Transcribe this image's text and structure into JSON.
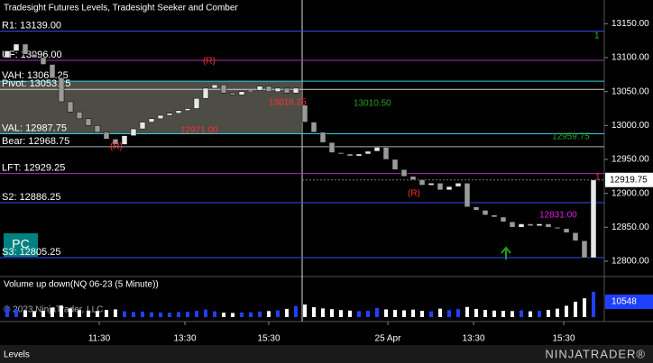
{
  "header": {
    "title": "Tradesight Futures Levels, Tradesight Seeker and Comber"
  },
  "chart_data": {
    "type": "candlestick",
    "ylim": [
      12780,
      13185
    ],
    "yticks": [
      {
        "value": 13150,
        "label": "13150.00"
      },
      {
        "value": 13100,
        "label": "13100.00"
      },
      {
        "value": 13050,
        "label": "13050.00"
      },
      {
        "value": 13000,
        "label": "13000.00"
      },
      {
        "value": 12950,
        "label": "12950.00"
      },
      {
        "value": 12900,
        "label": "12900.00"
      },
      {
        "value": 12850,
        "label": "12850.00"
      },
      {
        "value": 12800,
        "label": "12800.00"
      }
    ],
    "open": [
      13100,
      13110,
      13120,
      13105,
      13100,
      13090,
      13070,
      13035,
      13020,
      13010,
      13000,
      12990,
      12980,
      12972,
      12985,
      12995,
      13005,
      13010,
      13015,
      13018,
      13022,
      13025,
      13040,
      13055,
      13060,
      13048,
      13045,
      13050,
      13052,
      13058,
      13050,
      13055,
      13048,
      13030,
      13005,
      12990,
      12975,
      12960,
      12958,
      12955,
      12958,
      12962,
      12968,
      12950,
      12935,
      12925,
      12920,
      12912,
      12915,
      12905,
      12910,
      12915,
      12880,
      12875,
      12868,
      12865,
      12858,
      12850,
      12855,
      12852,
      12855,
      12850,
      12848,
      12842,
      12830,
      12805
    ],
    "close": [
      13110,
      13120,
      13105,
      13100,
      13090,
      13070,
      13035,
      13020,
      13010,
      13000,
      12990,
      12980,
      12972,
      12985,
      12995,
      13005,
      13010,
      13015,
      13018,
      13022,
      13025,
      13040,
      13055,
      13060,
      13048,
      13045,
      13050,
      13052,
      13058,
      13050,
      13055,
      13048,
      13055,
      13005,
      12990,
      12975,
      12960,
      12958,
      12955,
      12958,
      12962,
      12968,
      12950,
      12935,
      12925,
      12920,
      12912,
      12915,
      12905,
      12910,
      12915,
      12880,
      12875,
      12868,
      12865,
      12858,
      12850,
      12855,
      12852,
      12855,
      12850,
      12848,
      12842,
      12830,
      12805,
      12919.75
    ],
    "up_color": "#e8e8e8",
    "down_color": "#9a9a9a",
    "levels": [
      {
        "label": "R1: 13139.00",
        "value": 13139.0,
        "color": "#3050ff"
      },
      {
        "label": "UF: 13096.00",
        "value": 13096.0,
        "color": "#b030b0"
      },
      {
        "label": "VAH: 13065.25",
        "value": 13065.25,
        "color": "#30d0e0"
      },
      {
        "label": "Pivot: 13053.25",
        "value": 13053.25,
        "color": "#d0d0d0"
      },
      {
        "label": "VAL: 12987.75",
        "value": 12987.75,
        "color": "#30d0e0"
      },
      {
        "label": "Bear: 12968.75",
        "value": 12968.75,
        "color": "#b0b0b0"
      },
      {
        "label": "LFT: 12929.25",
        "value": 12929.25,
        "color": "#b030b0"
      },
      {
        "label": "S2: 12886.25",
        "value": 12886.25,
        "color": "#3050ff"
      },
      {
        "label": "S3: 12805.25",
        "value": 12805.25,
        "color": "#3050ff"
      }
    ],
    "annotations": [
      {
        "text": "13016.25",
        "color": "#ff3030"
      },
      {
        "text": "12971.00",
        "color": "#ff3030"
      },
      {
        "text": "13010.50",
        "color": "#20a020"
      },
      {
        "text": "12959.75",
        "color": "#20a020"
      },
      {
        "text": "12831.00",
        "color": "#e020e0"
      },
      {
        "text": "(R)",
        "color": "#ff3030"
      },
      {
        "text": "(R)",
        "color": "#ff3030"
      },
      {
        "text": "(R)",
        "color": "#ff3030"
      },
      {
        "text": "1",
        "color": "#20c020"
      },
      {
        "text": "1",
        "color": "#ff3030"
      }
    ],
    "badge": "PC",
    "time_labels": [
      "11:30",
      "13:30",
      "15:30",
      "25 Apr",
      "13:30",
      "15:30"
    ],
    "volume": {
      "title": "Volume up down(NQ 06-23 (5 Minute))",
      "ylim": [
        0,
        12000
      ],
      "up_color": "#2040ff",
      "down_color": "#ffffff",
      "values": [
        4200,
        3100,
        2800,
        2500,
        2600,
        3900,
        4800,
        3600,
        2900,
        2700,
        2500,
        3000,
        3200,
        2400,
        2100,
        2300,
        2000,
        1900,
        1800,
        2100,
        2200,
        2600,
        3100,
        2400,
        1800,
        1700,
        1900,
        2000,
        2300,
        2500,
        2800,
        3400,
        4600,
        5200,
        4100,
        3600,
        3300,
        2900,
        2700,
        2500,
        2600,
        3800,
        3200,
        3000,
        2800,
        3100,
        2600,
        2400,
        3500,
        2900,
        3300,
        4200,
        3400,
        3000,
        2700,
        2600,
        2500,
        2800,
        2400,
        2600,
        3000,
        3500,
        4700,
        6400,
        7800,
        10548
      ]
    }
  },
  "footer": {
    "copyright": "© 2023 NinjaTrader, LLC",
    "tab": "Levels",
    "logo": "NINJATRADER®"
  }
}
